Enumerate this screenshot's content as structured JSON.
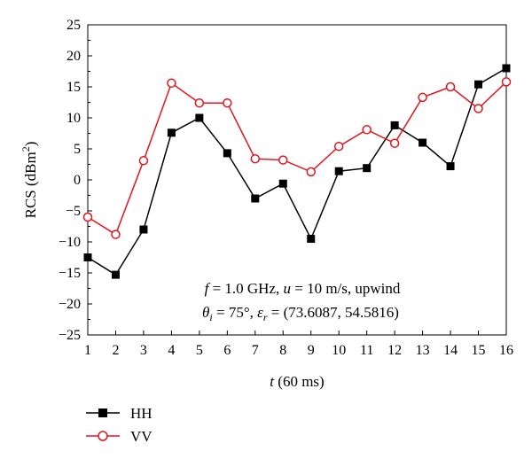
{
  "chart_data": {
    "type": "line",
    "xlabel": "t (60 ms)",
    "xlabel_parts": {
      "var": "t",
      "unit": " (60 ms)"
    },
    "ylabel": "RCS (dBm²)",
    "ylabel_parts": {
      "base": "RCS (dBm",
      "sup": "2",
      "end": ")"
    },
    "x": [
      1,
      2,
      3,
      4,
      5,
      6,
      7,
      8,
      9,
      10,
      11,
      12,
      13,
      14,
      15,
      16
    ],
    "xlim": [
      1,
      16
    ],
    "ylim": [
      -25,
      25
    ],
    "xticks": [
      "1",
      "2",
      "3",
      "4",
      "5",
      "6",
      "7",
      "8",
      "9",
      "10",
      "11",
      "12",
      "13",
      "14",
      "15",
      "16"
    ],
    "yticks": [
      "−25",
      "−20",
      "−15",
      "−10",
      "−5",
      "0",
      "5",
      "10",
      "15",
      "20",
      "25"
    ],
    "ytick_values": [
      -25,
      -20,
      -15,
      -10,
      -5,
      0,
      5,
      10,
      15,
      20,
      25
    ],
    "grid": false,
    "legend_position": "bottom-left, below plot",
    "series": [
      {
        "name": "HH",
        "color": "#000000",
        "marker": "filled-square",
        "values": [
          -12.5,
          -15.3,
          -8.0,
          7.6,
          10.0,
          4.3,
          -3.0,
          -0.6,
          -9.5,
          1.4,
          1.9,
          8.8,
          6.0,
          2.2,
          15.4,
          18.0
        ]
      },
      {
        "name": "VV",
        "color": "#e0161d",
        "marker": "open-circle",
        "values": [
          -6.0,
          -8.8,
          3.1,
          15.6,
          12.4,
          12.4,
          3.4,
          3.2,
          1.3,
          5.4,
          8.1,
          5.9,
          13.3,
          15.0,
          11.5,
          15.8
        ]
      }
    ],
    "annotations": [
      {
        "text": "f = 1.0 GHz, u = 10 m/s, upwind",
        "parts": {
          "f": "f",
          "f_eq": " = 1.0 GHz, ",
          "u": "u",
          "u_eq": " = 10 m/s, upwind"
        }
      },
      {
        "text": "θi = 75°, εr = (73.6087, 54.5816)",
        "parts": {
          "theta": "θ",
          "theta_sub": "i",
          "theta_eq": " = 75°, ",
          "eps": "ε",
          "eps_sub": "r",
          "eps_eq": " = (73.6087, 54.5816)"
        }
      }
    ]
  }
}
